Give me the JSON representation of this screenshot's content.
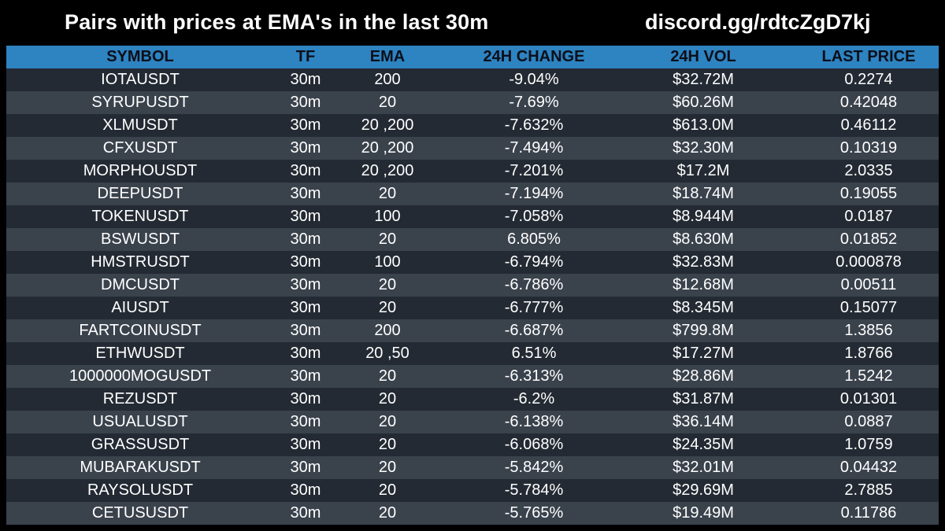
{
  "header": {
    "title": "Pairs with prices at EMA's in the last 30m",
    "discord": "discord.gg/rdtcZgD7kj"
  },
  "columns": {
    "symbol": "SYMBOL",
    "tf": "TF",
    "ema": "EMA",
    "change": "24H CHANGE",
    "vol": "24H VOL",
    "price": "LAST PRICE"
  },
  "colors": {
    "header_bar": "#2e83c1",
    "row_dark": "#232a33",
    "row_light": "#3a424c",
    "background": "#000000"
  },
  "rows": [
    {
      "symbol": "IOTAUSDT",
      "tf": "30m",
      "ema": "200",
      "change": "-9.04%",
      "vol": "$32.72M",
      "price": "0.2274"
    },
    {
      "symbol": "SYRUPUSDT",
      "tf": "30m",
      "ema": "20",
      "change": "-7.69%",
      "vol": "$60.26M",
      "price": "0.42048"
    },
    {
      "symbol": "XLMUSDT",
      "tf": "30m",
      "ema": "20 ,200",
      "change": "-7.632%",
      "vol": "$613.0M",
      "price": "0.46112"
    },
    {
      "symbol": "CFXUSDT",
      "tf": "30m",
      "ema": "20 ,200",
      "change": "-7.494%",
      "vol": "$32.30M",
      "price": "0.10319"
    },
    {
      "symbol": "MORPHOUSDT",
      "tf": "30m",
      "ema": "20 ,200",
      "change": "-7.201%",
      "vol": "$17.2M",
      "price": "2.0335"
    },
    {
      "symbol": "DEEPUSDT",
      "tf": "30m",
      "ema": "20",
      "change": "-7.194%",
      "vol": "$18.74M",
      "price": "0.19055"
    },
    {
      "symbol": "TOKENUSDT",
      "tf": "30m",
      "ema": "100",
      "change": "-7.058%",
      "vol": "$8.944M",
      "price": "0.0187"
    },
    {
      "symbol": "BSWUSDT",
      "tf": "30m",
      "ema": "20",
      "change": "6.805%",
      "vol": "$8.630M",
      "price": "0.01852"
    },
    {
      "symbol": "HMSTRUSDT",
      "tf": "30m",
      "ema": "100",
      "change": "-6.794%",
      "vol": "$32.83M",
      "price": "0.000878"
    },
    {
      "symbol": "DMCUSDT",
      "tf": "30m",
      "ema": "20",
      "change": "-6.786%",
      "vol": "$12.68M",
      "price": "0.00511"
    },
    {
      "symbol": "AIUSDT",
      "tf": "30m",
      "ema": "20",
      "change": "-6.777%",
      "vol": "$8.345M",
      "price": "0.15077"
    },
    {
      "symbol": "FARTCOINUSDT",
      "tf": "30m",
      "ema": "200",
      "change": "-6.687%",
      "vol": "$799.8M",
      "price": "1.3856"
    },
    {
      "symbol": "ETHWUSDT",
      "tf": "30m",
      "ema": "20 ,50",
      "change": "6.51%",
      "vol": "$17.27M",
      "price": "1.8766"
    },
    {
      "symbol": "1000000MOGUSDT",
      "tf": "30m",
      "ema": "20",
      "change": "-6.313%",
      "vol": "$28.86M",
      "price": "1.5242"
    },
    {
      "symbol": "REZUSDT",
      "tf": "30m",
      "ema": "20",
      "change": "-6.2%",
      "vol": "$31.87M",
      "price": "0.01301"
    },
    {
      "symbol": "USUALUSDT",
      "tf": "30m",
      "ema": "20",
      "change": "-6.138%",
      "vol": "$36.14M",
      "price": "0.0887"
    },
    {
      "symbol": "GRASSUSDT",
      "tf": "30m",
      "ema": "20",
      "change": "-6.068%",
      "vol": "$24.35M",
      "price": "1.0759"
    },
    {
      "symbol": "MUBARAKUSDT",
      "tf": "30m",
      "ema": "20",
      "change": "-5.842%",
      "vol": "$32.01M",
      "price": "0.04432"
    },
    {
      "symbol": "RAYSOLUSDT",
      "tf": "30m",
      "ema": "20",
      "change": "-5.784%",
      "vol": "$29.69M",
      "price": "2.7885"
    },
    {
      "symbol": "CETUSUSDT",
      "tf": "30m",
      "ema": "20",
      "change": "-5.765%",
      "vol": "$19.49M",
      "price": "0.11786"
    }
  ]
}
